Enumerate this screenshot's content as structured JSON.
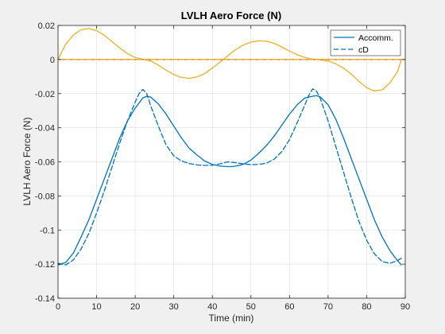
{
  "chart_data": {
    "type": "line",
    "title": "LVLH Aero Force (N)",
    "xlabel": "Time (min)",
    "ylabel": "LVLH Aero Force (N)",
    "xlim": [
      0,
      90
    ],
    "ylim": [
      -0.14,
      0.02
    ],
    "xticks": [
      0,
      10,
      20,
      30,
      40,
      50,
      60,
      70,
      80,
      90
    ],
    "xtick_labels": [
      "0",
      "10",
      "20",
      "30",
      "40",
      "50",
      "60",
      "70",
      "80",
      "90"
    ],
    "yticks": [
      0.02,
      0,
      -0.02,
      -0.04,
      -0.06,
      -0.08,
      -0.1,
      -0.12,
      -0.14
    ],
    "ytick_labels": [
      "0.02",
      "0",
      "-0.02",
      "-0.04",
      "-0.06",
      "-0.08",
      "-0.1",
      "-0.12",
      "-0.14"
    ],
    "grid": true,
    "legend_position": "top-right",
    "legend": [
      "Accomm.",
      "cD"
    ],
    "series": [
      {
        "name": "Accomm.",
        "color": "#0072bd",
        "style": "solid",
        "x": [
          0,
          2,
          4,
          6,
          8,
          10,
          12,
          14,
          16,
          18,
          20,
          22,
          23,
          24,
          26,
          28,
          30,
          32,
          34,
          36,
          38,
          40,
          42,
          44,
          45,
          46,
          48,
          50,
          52,
          54,
          56,
          58,
          60,
          62,
          64,
          66,
          67,
          68,
          70,
          72,
          74,
          76,
          78,
          80,
          82,
          84,
          86,
          88,
          89
        ],
        "y": [
          -0.1205,
          -0.119,
          -0.1135,
          -0.104,
          -0.094,
          -0.082,
          -0.07,
          -0.058,
          -0.046,
          -0.036,
          -0.0285,
          -0.0225,
          -0.0215,
          -0.022,
          -0.026,
          -0.032,
          -0.039,
          -0.046,
          -0.052,
          -0.056,
          -0.0595,
          -0.0615,
          -0.0625,
          -0.0628,
          -0.0628,
          -0.0625,
          -0.0615,
          -0.059,
          -0.055,
          -0.0505,
          -0.045,
          -0.0385,
          -0.032,
          -0.0265,
          -0.0225,
          -0.0215,
          -0.0212,
          -0.022,
          -0.0265,
          -0.035,
          -0.046,
          -0.058,
          -0.07,
          -0.082,
          -0.094,
          -0.104,
          -0.112,
          -0.118,
          -0.1205
        ]
      },
      {
        "name": "cD",
        "color": "#0072bd",
        "style": "dashed",
        "x": [
          0,
          2,
          4,
          6,
          8,
          10,
          12,
          14,
          16,
          18,
          20,
          21,
          22,
          23,
          24,
          26,
          28,
          30,
          32,
          34,
          36,
          38,
          40,
          42,
          44,
          46,
          48,
          50,
          52,
          54,
          56,
          58,
          60,
          62,
          64,
          65,
          66,
          67,
          68,
          70,
          72,
          74,
          76,
          78,
          80,
          82,
          84,
          86,
          88,
          89
        ],
        "y": [
          -0.1195,
          -0.1205,
          -0.1175,
          -0.111,
          -0.102,
          -0.09,
          -0.077,
          -0.063,
          -0.049,
          -0.036,
          -0.025,
          -0.02,
          -0.0175,
          -0.02,
          -0.027,
          -0.039,
          -0.05,
          -0.0565,
          -0.0595,
          -0.061,
          -0.0618,
          -0.0621,
          -0.062,
          -0.0612,
          -0.06,
          -0.0605,
          -0.0612,
          -0.0617,
          -0.0615,
          -0.0608,
          -0.0585,
          -0.054,
          -0.047,
          -0.037,
          -0.0265,
          -0.021,
          -0.0172,
          -0.0185,
          -0.023,
          -0.036,
          -0.051,
          -0.066,
          -0.081,
          -0.095,
          -0.106,
          -0.114,
          -0.1185,
          -0.1195,
          -0.118,
          -0.1165
        ]
      },
      {
        "name": "",
        "color": "#edb120",
        "style": "solid",
        "x": [
          0,
          2,
          4,
          6,
          8,
          10,
          12,
          14,
          16,
          18,
          20,
          22,
          24,
          26,
          28,
          30,
          32,
          34,
          36,
          38,
          40,
          42,
          44,
          46,
          48,
          50,
          52,
          54,
          56,
          58,
          60,
          62,
          64,
          66,
          68,
          70,
          72,
          74,
          76,
          78,
          80,
          82,
          84,
          86,
          88,
          89
        ],
        "y": [
          0.0,
          0.009,
          0.0145,
          0.0175,
          0.0182,
          0.017,
          0.0142,
          0.0105,
          0.0068,
          0.0035,
          0.0012,
          0.0002,
          -0.0008,
          -0.0032,
          -0.0062,
          -0.0088,
          -0.0105,
          -0.011,
          -0.0102,
          -0.0082,
          -0.005,
          -0.0015,
          0.0022,
          0.0058,
          0.0085,
          0.0102,
          0.011,
          0.0108,
          0.0095,
          0.0074,
          0.005,
          0.0028,
          0.0012,
          0.0002,
          -0.0002,
          -0.0008,
          -0.0025,
          -0.005,
          -0.0085,
          -0.0128,
          -0.0165,
          -0.0185,
          -0.0178,
          -0.0138,
          -0.007,
          0.0
        ]
      },
      {
        "name": "",
        "color": "#d95319",
        "style": "solid",
        "x": [
          0,
          90
        ],
        "y": [
          0,
          0
        ]
      },
      {
        "name": "",
        "color": "#edb120",
        "style": "dashed",
        "x": [
          0,
          90
        ],
        "y": [
          0,
          0
        ]
      }
    ]
  }
}
